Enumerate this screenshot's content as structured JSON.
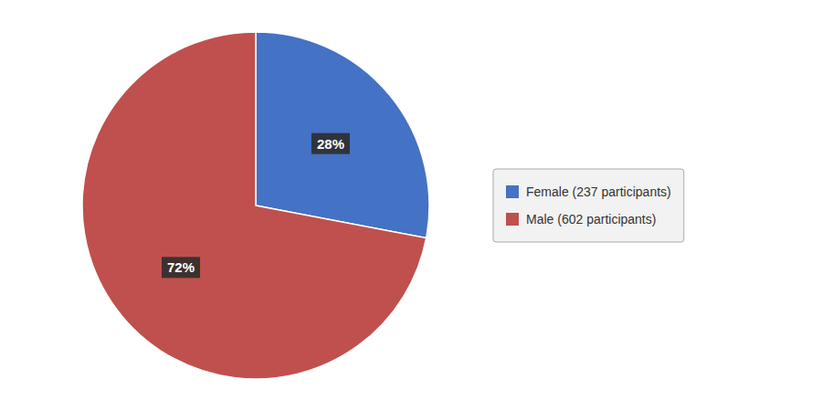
{
  "chart_data": {
    "type": "pie",
    "categories": [
      "Female (237 participants)",
      "Male (602 participants)"
    ],
    "values": [
      28,
      72
    ],
    "value_labels": [
      "28%",
      "72%"
    ],
    "colors": [
      "#4472C4",
      "#C0504D"
    ],
    "data_labels": true,
    "legend": "right"
  }
}
